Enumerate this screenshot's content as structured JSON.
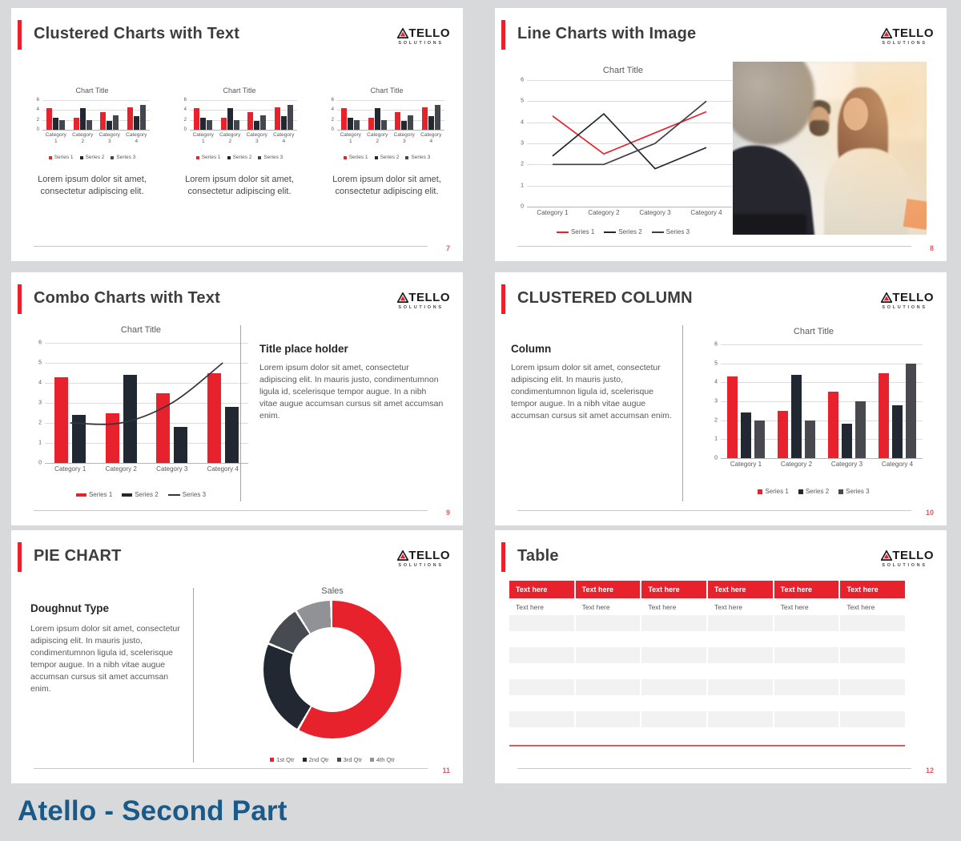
{
  "page": {
    "title": "Atello - Second Part",
    "background": "#d8d9da"
  },
  "brand": {
    "name": "ATELLO",
    "name_rest": "TELLO",
    "tagline": "SOLUTIONS",
    "accent_color": "#e8222c"
  },
  "slides": [
    {
      "title": "Clustered Charts with Text",
      "page_number": "7",
      "captions": [
        "Lorem ipsum dolor sit amet, consectetur adipiscing elit.",
        "Lorem ipsum dolor sit amet, consectetur adipiscing elit.",
        "Lorem ipsum dolor sit amet, consectetur adipiscing elit."
      ]
    },
    {
      "title": "Line Charts with Image",
      "page_number": "8"
    },
    {
      "title": "Combo Charts with Text",
      "page_number": "9",
      "heading": "Title place holder",
      "body": "Lorem ipsum dolor sit amet, consectetur adipiscing elit. In mauris justo, condimentumnon ligula id, scelerisque tempor augue. In a nibh vitae augue accumsan cursus sit amet accumsan enim."
    },
    {
      "title": "CLUSTERED COLUMN",
      "page_number": "10",
      "heading": "Column",
      "body": "Lorem ipsum dolor sit amet, consectetur adipiscing elit. In mauris justo, condimentumnon ligula id, scelerisque tempor augue. In a nibh vitae augue accumsan cursus sit amet accumsan enim."
    },
    {
      "title": "PIE CHART",
      "page_number": "11",
      "heading": "Doughnut Type",
      "body": "Lorem ipsum dolor sit amet, consectetur adipiscing elit. In mauris justo, condimentumnon ligula id, scelerisque tempor augue. In a nibh vitae augue accumsan cursus sit amet accumsan enim."
    },
    {
      "title": "Table",
      "page_number": "12",
      "table": {
        "headers": [
          "Text here",
          "Text here",
          "Text here",
          "Text here",
          "Text here",
          "Text here"
        ],
        "first_row": [
          "Text here",
          "Text here",
          "Text here",
          "Text here",
          "Text here",
          "Text here"
        ],
        "empty_row_count": 8
      }
    }
  ],
  "chart_data": [
    {
      "id": "mini-clustered-bar",
      "type": "bar",
      "title": "Chart Title",
      "categories": [
        "Category 1",
        "Category 2",
        "Category 3",
        "Category 4"
      ],
      "series": [
        {
          "name": "Series 1",
          "color": "#e8222c",
          "values": [
            4.3,
            2.5,
            3.5,
            4.5
          ]
        },
        {
          "name": "Series 2",
          "color": "#212831",
          "values": [
            2.4,
            4.4,
            1.8,
            2.8
          ]
        },
        {
          "name": "Series 3",
          "color": "#43464c",
          "values": [
            2,
            2,
            3,
            5
          ]
        }
      ],
      "ylim": [
        0,
        6
      ],
      "yticks": [
        0,
        2,
        4,
        6
      ],
      "grid": true,
      "legend_position": "bottom",
      "instances": 3
    },
    {
      "id": "line-chart",
      "type": "line",
      "title": "Chart Title",
      "categories": [
        "Category 1",
        "Category 2",
        "Category 3",
        "Category 4"
      ],
      "series": [
        {
          "name": "Series 1",
          "color": "#e8222c",
          "values": [
            4.3,
            2.5,
            3.5,
            4.5
          ]
        },
        {
          "name": "Series 2",
          "color": "#212831",
          "values": [
            2.4,
            4.4,
            1.8,
            2.8
          ]
        },
        {
          "name": "Series 3",
          "color": "#3c4046",
          "values": [
            2,
            2,
            3,
            5
          ]
        }
      ],
      "ylim": [
        0,
        6
      ],
      "yticks": [
        0,
        1,
        2,
        3,
        4,
        5,
        6
      ],
      "grid": true,
      "legend_position": "bottom"
    },
    {
      "id": "combo-chart",
      "type": "combo",
      "title": "Chart Title",
      "categories": [
        "Category 1",
        "Category 2",
        "Category 3",
        "Category 4"
      ],
      "series": [
        {
          "name": "Series 1",
          "kind": "bar",
          "color": "#e8222c",
          "values": [
            4.3,
            2.5,
            3.5,
            4.5
          ]
        },
        {
          "name": "Series 2",
          "kind": "bar",
          "color": "#212831",
          "values": [
            2.4,
            4.4,
            1.8,
            2.8
          ]
        },
        {
          "name": "Series 3",
          "kind": "line",
          "color": "#33373d",
          "values": [
            2,
            2,
            3,
            5
          ]
        }
      ],
      "ylim": [
        0,
        6
      ],
      "yticks": [
        0,
        1,
        2,
        3,
        4,
        5,
        6
      ],
      "grid": true,
      "legend_position": "bottom"
    },
    {
      "id": "clustered-column",
      "type": "bar",
      "title": "Chart Title",
      "categories": [
        "Category 1",
        "Category 2",
        "Category 3",
        "Category 4"
      ],
      "series": [
        {
          "name": "Series 1",
          "color": "#e8222c",
          "values": [
            4.3,
            2.5,
            3.5,
            4.5
          ]
        },
        {
          "name": "Series 2",
          "color": "#212831",
          "values": [
            2.4,
            4.4,
            1.8,
            2.8
          ]
        },
        {
          "name": "Series 3",
          "color": "#47494e",
          "values": [
            2,
            2,
            3,
            5
          ]
        }
      ],
      "ylim": [
        0,
        6
      ],
      "yticks": [
        0,
        1,
        2,
        3,
        4,
        5,
        6
      ],
      "grid": true,
      "legend_position": "bottom"
    },
    {
      "id": "doughnut",
      "type": "pie",
      "subtype": "doughnut",
      "title": "Sales",
      "labels": [
        "1st Qtr",
        "2nd Qtr",
        "3rd Qtr",
        "4th Qtr"
      ],
      "values": [
        8.2,
        3.2,
        1.4,
        1.2
      ],
      "colors": [
        "#e8222c",
        "#222831",
        "#474a50",
        "#909295"
      ],
      "legend_position": "bottom"
    }
  ]
}
